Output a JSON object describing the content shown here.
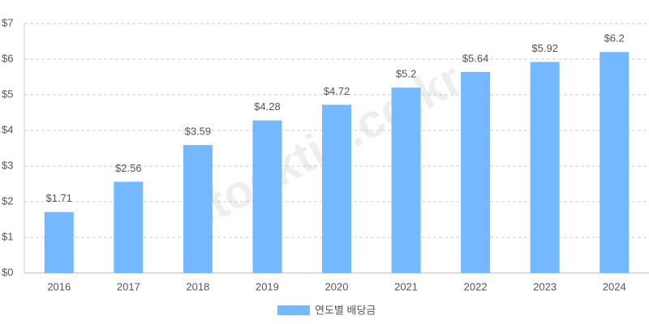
{
  "chart_data": {
    "type": "bar",
    "categories": [
      "2016",
      "2017",
      "2018",
      "2019",
      "2020",
      "2021",
      "2022",
      "2023",
      "2024"
    ],
    "series": [
      {
        "name": "연도별 배당금",
        "color": "#74b9ff",
        "values": [
          1.71,
          2.56,
          3.59,
          4.28,
          4.72,
          5.2,
          5.64,
          5.92,
          6.2
        ],
        "value_labels": [
          "$1.71",
          "$2.56",
          "$3.59",
          "$4.28",
          "$4.72",
          "$5.2",
          "$5.64",
          "$5.92",
          "$6.2"
        ]
      }
    ],
    "ylim": [
      0,
      7
    ],
    "yticks": [
      {
        "value": 0,
        "label": "$0"
      },
      {
        "value": 1,
        "label": "$1"
      },
      {
        "value": 2,
        "label": "$2"
      },
      {
        "value": 3,
        "label": "$3"
      },
      {
        "value": 4,
        "label": "$4"
      },
      {
        "value": 5,
        "label": "$5"
      },
      {
        "value": 6,
        "label": "$6"
      },
      {
        "value": 7,
        "label": "$7"
      }
    ],
    "grid": true,
    "legend": "bottom",
    "watermark": "stocktip.co.kr"
  }
}
